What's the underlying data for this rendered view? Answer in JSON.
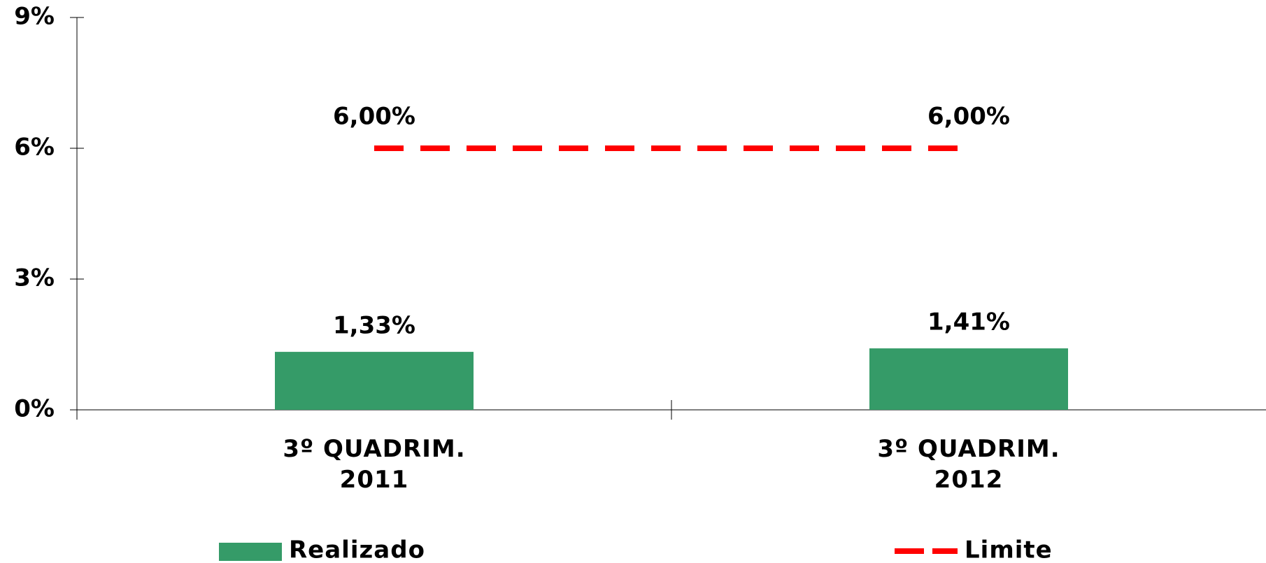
{
  "chart_data": {
    "type": "bar",
    "categories": [
      "3º QUADRIM.\n2011",
      "3º QUADRIM.\n2012"
    ],
    "series": [
      {
        "name": "Realizado",
        "type": "bar",
        "color": "#359b68",
        "values": [
          1.33,
          1.41
        ],
        "value_labels": [
          "1,33%",
          "1,41%"
        ]
      },
      {
        "name": "Limite",
        "type": "line",
        "dashed": true,
        "color": "#ff0000",
        "values": [
          6,
          6
        ],
        "value_labels": [
          "6,00%",
          "6,00%"
        ]
      }
    ],
    "ylim": [
      0,
      9
    ],
    "yticks": [
      {
        "value": 0,
        "label": "0%"
      },
      {
        "value": 3,
        "label": "3%"
      },
      {
        "value": 6,
        "label": "6%"
      },
      {
        "value": 9,
        "label": "9%"
      }
    ],
    "grid": false
  }
}
